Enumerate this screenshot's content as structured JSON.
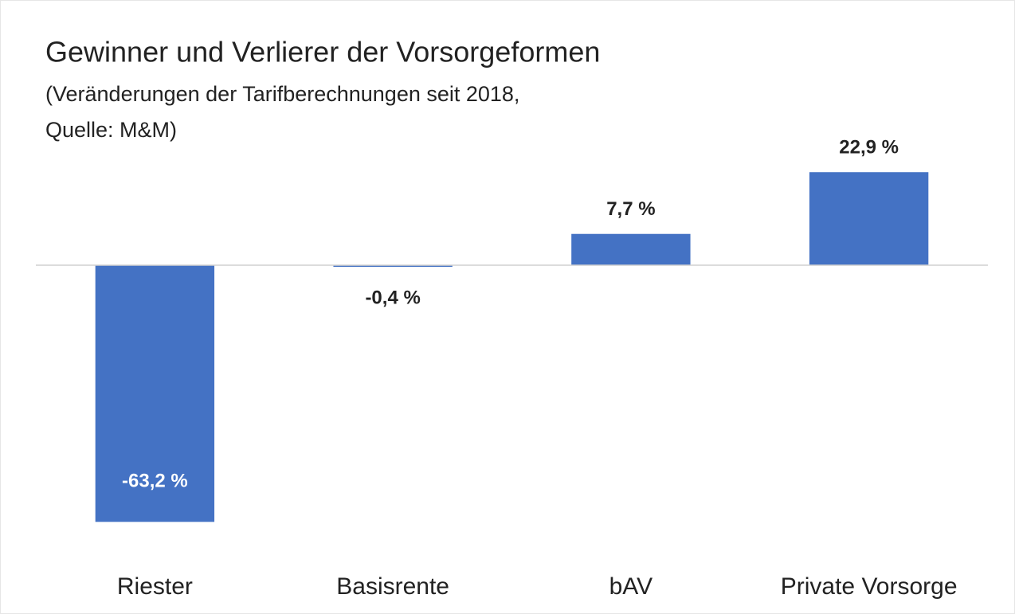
{
  "chart_data": {
    "type": "bar",
    "title": "Gewinner und Verlierer der Vorsorgeformen",
    "subtitle": [
      "(Veränderungen der Tarifberechnungen seit 2018,",
      "Quelle: M&M)"
    ],
    "categories": [
      "Riester",
      "Basisrente",
      "bAV",
      "Private Vorsorge"
    ],
    "values": [
      -63.2,
      -0.4,
      7.7,
      22.9
    ],
    "value_labels": [
      "-63,2 %",
      "-0,4 %",
      "7,7 %",
      "22,9 %"
    ],
    "color": "#4472c4",
    "ylim": [
      -70,
      30
    ]
  }
}
